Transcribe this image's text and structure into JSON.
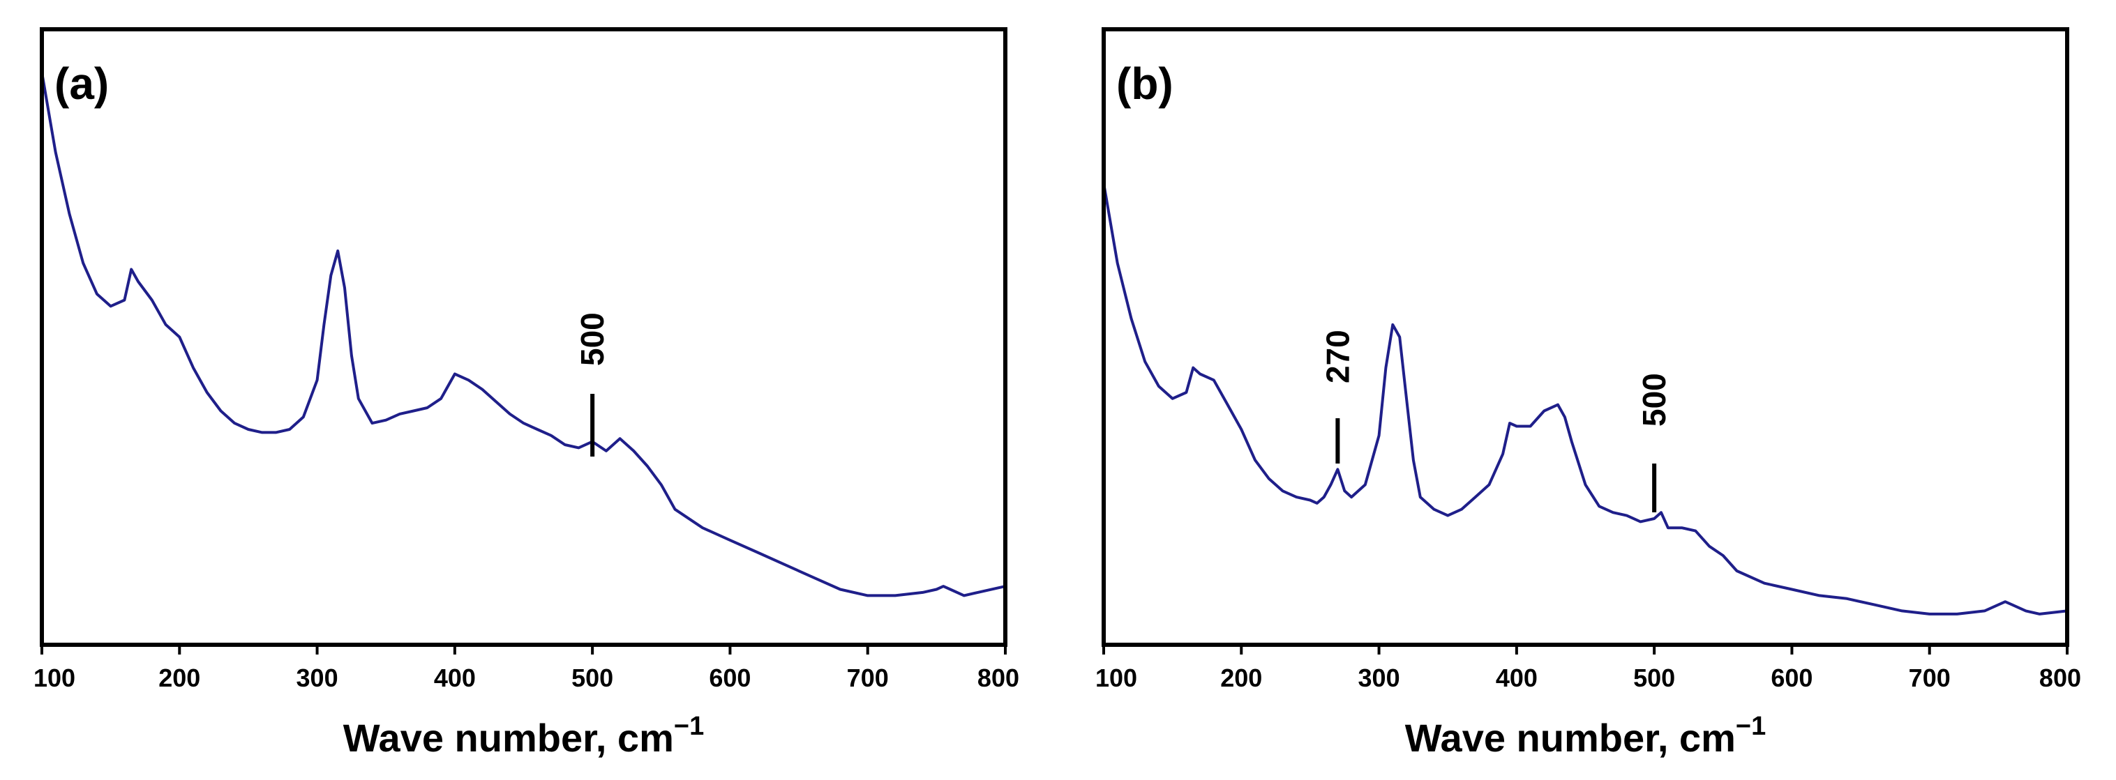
{
  "chart_data": [
    {
      "type": "line",
      "panel_label": "(a)",
      "title": "",
      "xlabel": "Wave number, cm",
      "xlabel_sup": "−1",
      "ylabel": "",
      "xlim": [
        100,
        800
      ],
      "ylim": [
        0,
        1
      ],
      "grid": false,
      "x_ticks": [
        100,
        200,
        300,
        400,
        500,
        600,
        700,
        800
      ],
      "x_tick_labels": [
        "100",
        "200",
        "300",
        "400",
        "500",
        "600",
        "700",
        "800"
      ],
      "line_color": "#1f1f8a",
      "series": [
        {
          "name": "spectrum",
          "x": [
            100,
            110,
            120,
            130,
            140,
            150,
            160,
            165,
            170,
            180,
            190,
            200,
            210,
            220,
            230,
            240,
            250,
            260,
            270,
            280,
            290,
            300,
            305,
            310,
            315,
            320,
            325,
            330,
            340,
            350,
            360,
            370,
            380,
            390,
            400,
            410,
            420,
            430,
            440,
            450,
            460,
            470,
            480,
            490,
            500,
            510,
            520,
            530,
            540,
            550,
            560,
            580,
            600,
            620,
            640,
            660,
            680,
            700,
            720,
            740,
            750,
            755,
            760,
            770,
            780,
            800
          ],
          "y": [
            0.93,
            0.8,
            0.7,
            0.62,
            0.57,
            0.55,
            0.56,
            0.61,
            0.59,
            0.56,
            0.52,
            0.5,
            0.45,
            0.41,
            0.38,
            0.36,
            0.35,
            0.345,
            0.345,
            0.35,
            0.37,
            0.43,
            0.52,
            0.6,
            0.64,
            0.58,
            0.47,
            0.4,
            0.36,
            0.365,
            0.375,
            0.38,
            0.385,
            0.4,
            0.44,
            0.43,
            0.415,
            0.395,
            0.375,
            0.36,
            0.35,
            0.34,
            0.325,
            0.32,
            0.33,
            0.315,
            0.335,
            0.315,
            0.29,
            0.26,
            0.22,
            0.19,
            0.17,
            0.15,
            0.13,
            0.11,
            0.09,
            0.08,
            0.08,
            0.085,
            0.09,
            0.095,
            0.09,
            0.08,
            0.085,
            0.095
          ]
        }
      ],
      "annotations": [
        {
          "text": "500",
          "x": 500,
          "y": 0.36
        }
      ]
    },
    {
      "type": "line",
      "panel_label": "(b)",
      "title": "",
      "xlabel": "Wave number, cm",
      "xlabel_sup": "−1",
      "ylabel": "",
      "xlim": [
        100,
        800
      ],
      "ylim": [
        0,
        1
      ],
      "grid": false,
      "x_ticks": [
        100,
        200,
        300,
        400,
        500,
        600,
        700,
        800
      ],
      "x_tick_labels": [
        "100",
        "200",
        "300",
        "400",
        "500",
        "600",
        "700",
        "800"
      ],
      "line_color": "#1f1f8a",
      "series": [
        {
          "name": "spectrum",
          "x": [
            100,
            110,
            120,
            130,
            140,
            150,
            160,
            165,
            170,
            180,
            190,
            200,
            210,
            220,
            230,
            240,
            250,
            255,
            260,
            265,
            270,
            275,
            280,
            290,
            300,
            305,
            310,
            315,
            320,
            325,
            330,
            340,
            350,
            360,
            370,
            380,
            390,
            395,
            400,
            410,
            420,
            430,
            435,
            440,
            450,
            460,
            470,
            480,
            490,
            500,
            505,
            510,
            520,
            530,
            540,
            550,
            560,
            580,
            600,
            620,
            640,
            660,
            680,
            700,
            720,
            740,
            750,
            755,
            760,
            770,
            780,
            800
          ],
          "y": [
            0.75,
            0.62,
            0.53,
            0.46,
            0.42,
            0.4,
            0.41,
            0.45,
            0.44,
            0.43,
            0.39,
            0.35,
            0.3,
            0.27,
            0.25,
            0.24,
            0.235,
            0.23,
            0.24,
            0.26,
            0.285,
            0.25,
            0.24,
            0.26,
            0.34,
            0.45,
            0.52,
            0.5,
            0.4,
            0.3,
            0.24,
            0.22,
            0.21,
            0.22,
            0.24,
            0.26,
            0.31,
            0.36,
            0.355,
            0.355,
            0.38,
            0.39,
            0.37,
            0.33,
            0.26,
            0.225,
            0.215,
            0.21,
            0.2,
            0.205,
            0.215,
            0.19,
            0.19,
            0.185,
            0.16,
            0.145,
            0.12,
            0.1,
            0.09,
            0.08,
            0.075,
            0.065,
            0.055,
            0.05,
            0.05,
            0.055,
            0.065,
            0.07,
            0.065,
            0.055,
            0.05,
            0.055
          ]
        }
      ],
      "annotations": [
        {
          "text": "270",
          "x": 270,
          "y": 0.3
        },
        {
          "text": "500",
          "x": 500,
          "y": 0.22
        }
      ]
    }
  ]
}
